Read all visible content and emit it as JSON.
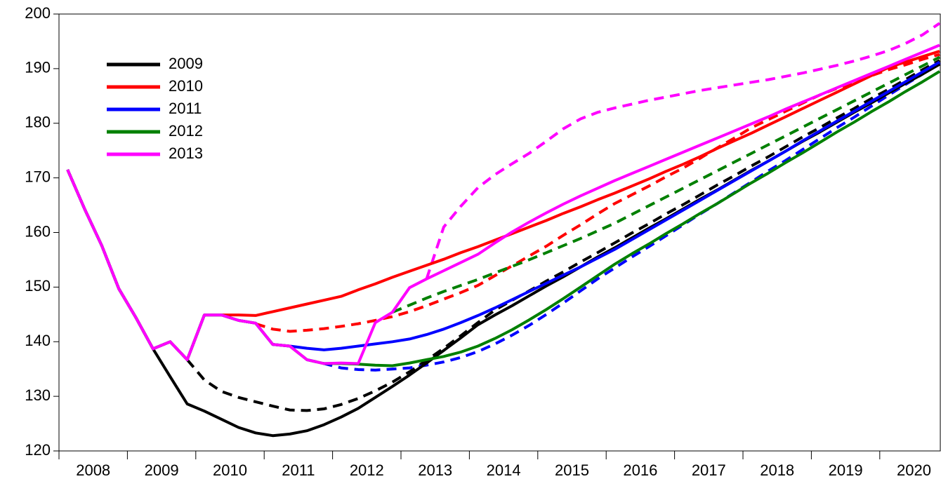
{
  "chart_data": {
    "type": "line",
    "categories": [
      "2008",
      null,
      null,
      null,
      "2009",
      null,
      null,
      null,
      "2010",
      null,
      null,
      null,
      "2011",
      null,
      null,
      null,
      "2012",
      null,
      null,
      null,
      "2013",
      null,
      null,
      null,
      "2014",
      null,
      null,
      null,
      "2015",
      null,
      null,
      null,
      "2016",
      null,
      null,
      null,
      "2017",
      null,
      null,
      null,
      "2018",
      null,
      null,
      null,
      "2019",
      null,
      null,
      null,
      "2020",
      null,
      null,
      null
    ],
    "ylim": [
      120,
      200
    ],
    "yticks": [
      120,
      130,
      140,
      150,
      160,
      170,
      180,
      190,
      200
    ],
    "legend": "upper left",
    "series": [
      {
        "name": "2009",
        "color": "#000000",
        "values": [
          171.5,
          164.3,
          157.6,
          149.7,
          144.4,
          138.7,
          133.6,
          128.6,
          127.3,
          125.8,
          124.3,
          123.3,
          122.8,
          123.1,
          123.7,
          124.8,
          126.2,
          127.8,
          129.8,
          131.8,
          133.9,
          136.1,
          138.4,
          140.7,
          143.1,
          144.9,
          146.6,
          148.4,
          150.2,
          151.9,
          153.7,
          155.5,
          157.2,
          159.0,
          160.8,
          162.5,
          164.3,
          166.1,
          167.8,
          169.6,
          171.4,
          173.1,
          174.9,
          176.7,
          178.4,
          180.2,
          182.0,
          183.7,
          185.5,
          187.3,
          189.0,
          190.8
        ],
        "dashed_values": [
          null,
          null,
          null,
          null,
          null,
          null,
          null,
          136.7,
          133.0,
          130.9,
          129.8,
          129.0,
          128.2,
          127.5,
          127.4,
          127.7,
          128.5,
          129.6,
          131.0,
          132.6,
          134.5,
          136.6,
          138.8,
          141.1,
          143.5,
          145.8,
          147.6,
          149.3,
          151.1,
          152.8,
          154.6,
          156.3,
          158.1,
          159.9,
          161.6,
          163.4,
          165.1,
          166.9,
          168.7,
          170.4,
          172.2,
          173.9,
          175.7,
          177.5,
          179.2,
          181.0,
          182.7,
          184.5,
          186.2,
          188.0,
          189.8,
          191.5
        ]
      },
      {
        "name": "2010",
        "color": "#ff0000",
        "values": [
          171.5,
          164.3,
          157.6,
          149.7,
          144.4,
          138.7,
          140.0,
          136.7,
          144.9,
          144.9,
          144.9,
          144.8,
          145.5,
          146.2,
          146.9,
          147.6,
          148.3,
          149.5,
          150.6,
          151.8,
          152.9,
          154.0,
          155.1,
          156.3,
          157.4,
          158.6,
          159.8,
          161.0,
          162.2,
          163.5,
          164.7,
          166.0,
          167.2,
          168.5,
          169.8,
          171.2,
          172.5,
          173.9,
          175.4,
          176.8,
          178.2,
          179.7,
          181.2,
          182.7,
          184.2,
          185.7,
          187.2,
          188.7,
          190.2,
          191.2,
          192.2,
          193.2
        ],
        "dashed_values": [
          null,
          null,
          null,
          null,
          null,
          null,
          null,
          null,
          null,
          null,
          null,
          143.3,
          142.3,
          141.9,
          142.1,
          142.4,
          142.8,
          143.3,
          143.9,
          144.6,
          145.5,
          146.6,
          147.8,
          149.0,
          150.3,
          152.1,
          153.9,
          155.7,
          157.5,
          159.5,
          161.4,
          163.4,
          165.3,
          166.9,
          168.5,
          170.2,
          171.8,
          173.6,
          175.5,
          177.3,
          179.2,
          180.7,
          182.2,
          183.7,
          185.2,
          186.4,
          187.5,
          188.7,
          189.8,
          190.7,
          191.7,
          192.6
        ]
      },
      {
        "name": "2011",
        "color": "#0000ff",
        "values": [
          171.5,
          164.3,
          157.6,
          149.7,
          144.4,
          138.7,
          140.0,
          136.7,
          144.9,
          144.9,
          143.9,
          143.4,
          139.5,
          139.2,
          138.8,
          138.5,
          138.8,
          139.2,
          139.6,
          140.0,
          140.5,
          141.3,
          142.3,
          143.5,
          144.8,
          146.2,
          147.7,
          149.2,
          150.7,
          152.2,
          153.7,
          155.3,
          156.9,
          158.7,
          160.5,
          162.3,
          164.1,
          165.9,
          167.7,
          169.5,
          171.3,
          173.1,
          174.9,
          176.8,
          178.6,
          180.4,
          182.2,
          184.0,
          185.8,
          187.6,
          189.4,
          191.2
        ],
        "dashed_values": [
          null,
          null,
          null,
          null,
          null,
          null,
          null,
          null,
          null,
          null,
          null,
          null,
          null,
          null,
          136.7,
          136.0,
          135.2,
          134.9,
          134.8,
          135.0,
          135.2,
          135.7,
          136.3,
          137.1,
          138.2,
          139.6,
          141.2,
          143.0,
          145.0,
          147.1,
          149.3,
          151.5,
          153.5,
          155.5,
          157.4,
          159.4,
          161.4,
          163.4,
          165.3,
          167.3,
          169.3,
          171.3,
          173.2,
          175.2,
          177.2,
          179.2,
          181.1,
          183.1,
          185.1,
          187.1,
          189.0,
          191.0
        ]
      },
      {
        "name": "2012",
        "color": "#008000",
        "values": [
          171.5,
          164.3,
          157.6,
          149.7,
          144.4,
          138.7,
          140.0,
          136.7,
          144.9,
          144.9,
          143.9,
          143.4,
          139.5,
          139.2,
          136.7,
          136.0,
          136.0,
          135.9,
          135.7,
          135.6,
          136.1,
          136.7,
          137.3,
          138.1,
          139.2,
          140.6,
          142.2,
          144.0,
          145.9,
          147.9,
          150.0,
          152.1,
          154.2,
          156.1,
          157.9,
          159.8,
          161.6,
          163.5,
          165.3,
          167.2,
          169.1,
          170.9,
          172.8,
          174.6,
          176.5,
          178.4,
          180.2,
          182.1,
          183.9,
          185.8,
          187.6,
          189.5
        ],
        "dashed_values": [
          null,
          null,
          null,
          null,
          null,
          null,
          null,
          null,
          null,
          null,
          null,
          null,
          null,
          null,
          null,
          null,
          null,
          null,
          null,
          145.4,
          146.7,
          148.0,
          149.2,
          150.3,
          151.4,
          152.6,
          153.8,
          155.0,
          156.3,
          157.6,
          158.9,
          160.3,
          161.7,
          163.3,
          164.9,
          166.5,
          168.1,
          169.7,
          171.3,
          172.9,
          174.5,
          176.1,
          177.7,
          179.3,
          180.9,
          182.5,
          184.1,
          185.7,
          187.3,
          188.9,
          190.5,
          192.1
        ]
      },
      {
        "name": "2013",
        "color": "#ff00ff",
        "values": [
          171.5,
          164.3,
          157.6,
          149.7,
          144.4,
          138.7,
          140.0,
          136.7,
          144.9,
          144.9,
          143.9,
          143.4,
          139.5,
          139.2,
          136.7,
          136.0,
          136.1,
          136.0,
          143.5,
          145.4,
          149.9,
          151.5,
          153.0,
          154.5,
          156.0,
          158.1,
          160.1,
          161.9,
          163.6,
          165.2,
          166.7,
          168.1,
          169.5,
          170.8,
          172.1,
          173.4,
          174.7,
          176.0,
          177.3,
          178.6,
          179.9,
          181.2,
          182.6,
          183.9,
          185.2,
          186.5,
          187.8,
          189.1,
          190.4,
          191.7,
          193.0,
          194.3
        ],
        "dashed_values": [
          null,
          null,
          null,
          null,
          null,
          null,
          null,
          null,
          null,
          null,
          null,
          null,
          null,
          null,
          null,
          null,
          null,
          null,
          null,
          null,
          null,
          151.5,
          161.0,
          164.8,
          168.2,
          170.6,
          172.6,
          174.5,
          176.7,
          179.0,
          180.8,
          182.0,
          182.8,
          183.5,
          184.2,
          184.8,
          185.4,
          186.0,
          186.5,
          187.0,
          187.5,
          188.0,
          188.6,
          189.2,
          189.9,
          190.6,
          191.4,
          192.3,
          193.3,
          194.6,
          196.2,
          198.3
        ]
      }
    ]
  }
}
